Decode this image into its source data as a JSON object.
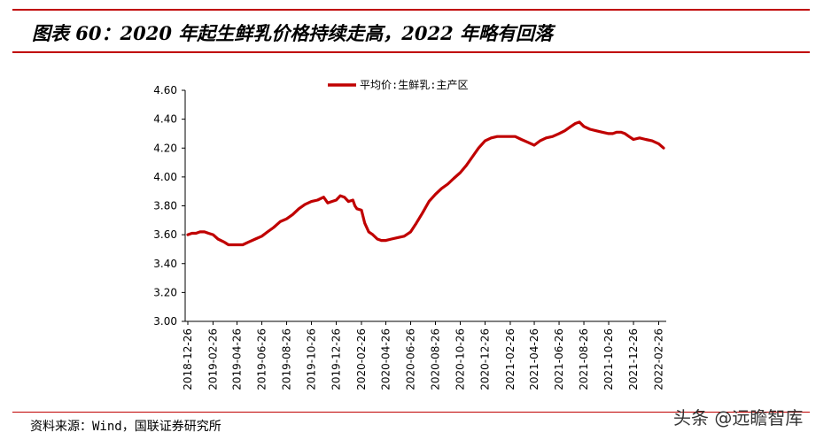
{
  "header": {
    "title": "图表 60：2020 年起生鲜乳价格持续走高，2022 年略有回落"
  },
  "footer": {
    "source": "资料来源：Wind，国联证券研究所",
    "watermark": "头条 @远瞻智库"
  },
  "colors": {
    "accent": "#c00000",
    "line": "#c00000"
  },
  "chart_data": {
    "type": "line",
    "legend": "top-center",
    "grid": false,
    "ylim": [
      3.0,
      4.6
    ],
    "y_ticks": [
      "3.00",
      "3.20",
      "3.40",
      "3.60",
      "3.80",
      "4.00",
      "4.20",
      "4.40",
      "4.60"
    ],
    "x_ticks": [
      "2018-12-26",
      "2019-02-26",
      "2019-04-26",
      "2019-06-26",
      "2019-08-26",
      "2019-10-26",
      "2019-12-26",
      "2020-02-26",
      "2020-04-26",
      "2020-06-26",
      "2020-08-26",
      "2020-10-26",
      "2020-12-26",
      "2021-02-26",
      "2021-04-26",
      "2021-06-26",
      "2021-08-26",
      "2021-10-26",
      "2021-12-26",
      "2022-02-26"
    ],
    "series": [
      {
        "name": "平均价:生鲜乳:主产区",
        "x": [
          "2018-12-26",
          "2019-01-05",
          "2019-01-15",
          "2019-01-25",
          "2019-02-05",
          "2019-02-15",
          "2019-02-26",
          "2019-03-10",
          "2019-03-25",
          "2019-04-05",
          "2019-04-15",
          "2019-04-26",
          "2019-05-10",
          "2019-05-25",
          "2019-06-10",
          "2019-06-26",
          "2019-07-10",
          "2019-07-25",
          "2019-08-10",
          "2019-08-26",
          "2019-09-10",
          "2019-09-25",
          "2019-10-10",
          "2019-10-26",
          "2019-11-10",
          "2019-11-25",
          "2019-12-05",
          "2019-12-15",
          "2019-12-26",
          "2020-01-05",
          "2020-01-15",
          "2020-01-25",
          "2020-02-05",
          "2020-02-10",
          "2020-02-15",
          "2020-02-26",
          "2020-03-05",
          "2020-03-15",
          "2020-03-25",
          "2020-04-05",
          "2020-04-15",
          "2020-04-26",
          "2020-05-10",
          "2020-05-25",
          "2020-06-10",
          "2020-06-26",
          "2020-07-10",
          "2020-07-25",
          "2020-08-10",
          "2020-08-26",
          "2020-09-10",
          "2020-09-25",
          "2020-10-10",
          "2020-10-26",
          "2020-11-10",
          "2020-11-25",
          "2020-12-10",
          "2020-12-26",
          "2021-01-10",
          "2021-01-25",
          "2021-02-10",
          "2021-02-26",
          "2021-03-10",
          "2021-03-25",
          "2021-04-10",
          "2021-04-26",
          "2021-05-10",
          "2021-05-25",
          "2021-06-10",
          "2021-06-26",
          "2021-07-10",
          "2021-07-25",
          "2021-08-05",
          "2021-08-15",
          "2021-08-26",
          "2021-09-10",
          "2021-09-25",
          "2021-10-10",
          "2021-10-26",
          "2021-11-05",
          "2021-11-15",
          "2021-11-25",
          "2021-12-05",
          "2021-12-15",
          "2021-12-26",
          "2022-01-10",
          "2022-01-25",
          "2022-02-10",
          "2022-02-26",
          "2022-03-10"
        ],
        "values": [
          3.6,
          3.61,
          3.61,
          3.62,
          3.62,
          3.61,
          3.6,
          3.57,
          3.55,
          3.53,
          3.53,
          3.53,
          3.53,
          3.55,
          3.57,
          3.59,
          3.62,
          3.65,
          3.69,
          3.71,
          3.74,
          3.78,
          3.81,
          3.83,
          3.84,
          3.86,
          3.82,
          3.83,
          3.84,
          3.87,
          3.86,
          3.83,
          3.84,
          3.8,
          3.78,
          3.77,
          3.68,
          3.62,
          3.6,
          3.57,
          3.56,
          3.56,
          3.57,
          3.58,
          3.59,
          3.62,
          3.68,
          3.75,
          3.83,
          3.88,
          3.92,
          3.95,
          3.99,
          4.03,
          4.08,
          4.14,
          4.2,
          4.25,
          4.27,
          4.28,
          4.28,
          4.28,
          4.28,
          4.26,
          4.24,
          4.22,
          4.25,
          4.27,
          4.28,
          4.3,
          4.32,
          4.35,
          4.37,
          4.38,
          4.35,
          4.33,
          4.32,
          4.31,
          4.3,
          4.3,
          4.31,
          4.31,
          4.3,
          4.28,
          4.26,
          4.27,
          4.26,
          4.25,
          4.23,
          4.2
        ]
      }
    ]
  }
}
